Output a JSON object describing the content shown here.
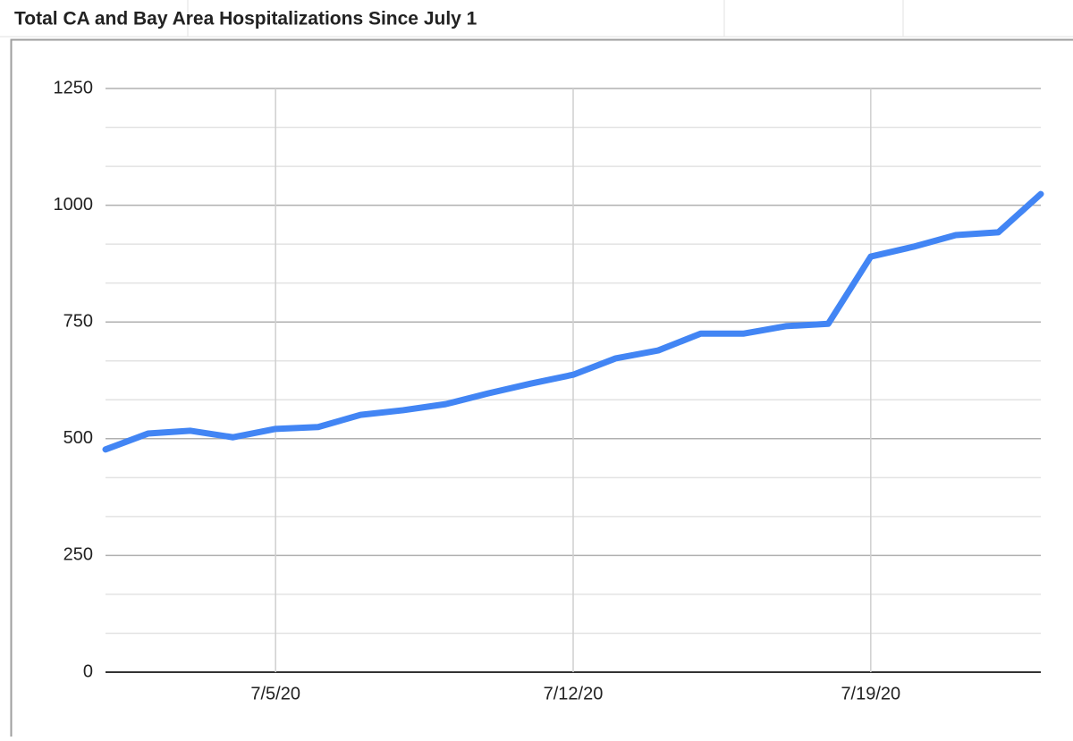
{
  "chart_data": {
    "type": "line",
    "title": "Total CA and Bay Area Hospitalizations Since July 1",
    "categories": [
      null,
      null,
      null,
      null,
      "7/5/20",
      null,
      null,
      null,
      null,
      null,
      null,
      "7/12/20",
      null,
      null,
      null,
      null,
      null,
      null,
      "7/19/20",
      null,
      null,
      null,
      null
    ],
    "values": [
      477,
      511,
      517,
      503,
      521,
      525,
      551,
      561,
      574,
      597,
      618,
      637,
      672,
      689,
      725,
      725,
      741,
      746,
      890,
      911,
      936,
      942,
      1024
    ],
    "color": "#4285f4",
    "ylim": [
      0,
      1250
    ],
    "yticks": [
      0,
      250,
      500,
      750,
      1000,
      1250
    ],
    "grid": true
  }
}
